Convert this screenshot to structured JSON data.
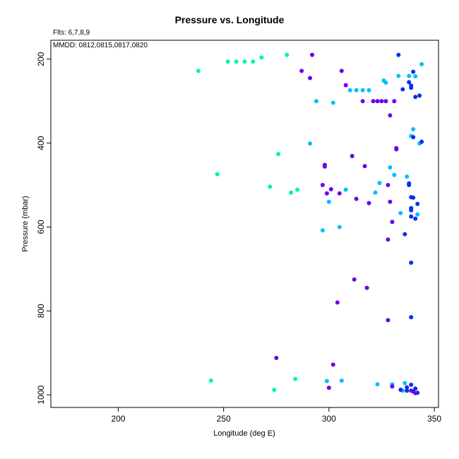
{
  "page": {
    "title": "Pressure vs. Longitude"
  },
  "info": {
    "flts": "Flts: 6,7,8,9",
    "mmdd": "MMDD: 0812,0815,0817,0820"
  },
  "colors": {
    "flt6": "#00f5a6",
    "flt7": "#00bfff",
    "flt8": "#0a2ef0",
    "flt9": "#6b00f0"
  },
  "chart_data": {
    "type": "scatter",
    "title": "Pressure vs. Longitude",
    "xlabel": "Longitude (deg E)",
    "ylabel": "Pressure (mbar)",
    "xlim": [
      168,
      352
    ],
    "ylim": [
      1030,
      155
    ],
    "y_reversed": true,
    "x_ticks": [
      200,
      250,
      300,
      350
    ],
    "y_ticks": [
      200,
      400,
      600,
      800,
      1000
    ],
    "grid": false,
    "series": [
      {
        "color_key": "flt6",
        "points": [
          [
            238,
            228
          ],
          [
            244,
            966
          ],
          [
            247,
            474
          ],
          [
            252,
            206
          ],
          [
            256,
            206
          ],
          [
            260,
            206
          ],
          [
            264,
            206
          ],
          [
            268,
            196
          ],
          [
            272,
            504
          ],
          [
            274,
            988
          ],
          [
            276,
            426
          ],
          [
            280,
            190
          ],
          [
            282,
            518
          ],
          [
            284,
            962
          ],
          [
            285,
            511
          ]
        ]
      },
      {
        "color_key": "flt7",
        "points": [
          [
            291,
            401
          ],
          [
            294,
            300
          ],
          [
            297,
            608
          ],
          [
            299,
            967
          ],
          [
            300,
            540
          ],
          [
            302,
            304
          ],
          [
            305,
            600
          ],
          [
            306,
            966
          ],
          [
            308,
            511
          ],
          [
            310,
            274
          ],
          [
            313,
            274
          ],
          [
            316,
            274
          ],
          [
            319,
            274
          ],
          [
            322,
            518
          ],
          [
            323,
            975
          ],
          [
            324,
            495
          ],
          [
            326,
            251
          ],
          [
            327,
            256
          ],
          [
            329,
            458
          ],
          [
            330,
            975
          ],
          [
            331,
            476
          ],
          [
            333,
            240
          ],
          [
            336,
            972
          ],
          [
            337,
            480
          ],
          [
            338,
            240
          ],
          [
            339,
            383
          ],
          [
            340,
            367
          ],
          [
            341,
            241
          ],
          [
            342,
            570
          ],
          [
            343,
            401
          ],
          [
            344,
            212
          ],
          [
            335,
            990
          ],
          [
            334,
            567
          ]
        ]
      },
      {
        "color_key": "flt8",
        "points": [
          [
            333,
            190
          ],
          [
            335,
            272
          ],
          [
            336,
            617
          ],
          [
            337,
            990
          ],
          [
            338,
            255
          ],
          [
            339,
            263
          ],
          [
            339,
            268
          ],
          [
            338,
            496
          ],
          [
            338,
            500
          ],
          [
            339,
            529
          ],
          [
            339,
            555
          ],
          [
            339,
            560
          ],
          [
            339,
            575
          ],
          [
            339,
            685
          ],
          [
            339,
            815
          ],
          [
            340,
            230
          ],
          [
            340,
            386
          ],
          [
            340,
            530
          ],
          [
            341,
            290
          ],
          [
            341,
            580
          ],
          [
            341,
            985
          ],
          [
            342,
            545
          ],
          [
            343,
            287
          ],
          [
            344,
            397
          ],
          [
            342,
            995
          ],
          [
            337,
            982
          ],
          [
            339,
            976
          ],
          [
            340,
            992
          ],
          [
            334,
            988
          ]
        ]
      },
      {
        "color_key": "flt9",
        "points": [
          [
            275,
            912
          ],
          [
            287,
            228
          ],
          [
            291,
            245
          ],
          [
            292,
            190
          ],
          [
            297,
            500
          ],
          [
            298,
            452
          ],
          [
            298,
            456
          ],
          [
            299,
            520
          ],
          [
            300,
            983
          ],
          [
            301,
            510
          ],
          [
            302,
            928
          ],
          [
            304,
            780
          ],
          [
            305,
            520
          ],
          [
            306,
            228
          ],
          [
            308,
            262
          ],
          [
            311,
            431
          ],
          [
            312,
            725
          ],
          [
            313,
            533
          ],
          [
            316,
            300
          ],
          [
            317,
            455
          ],
          [
            318,
            745
          ],
          [
            319,
            543
          ],
          [
            321,
            300
          ],
          [
            323,
            300
          ],
          [
            325,
            300
          ],
          [
            327,
            300
          ],
          [
            328,
            500
          ],
          [
            328,
            822
          ],
          [
            328,
            630
          ],
          [
            329,
            334
          ],
          [
            329,
            540
          ],
          [
            330,
            588
          ],
          [
            331,
            300
          ],
          [
            332,
            412
          ],
          [
            332,
            415
          ],
          [
            330,
            980
          ],
          [
            339,
            990
          ],
          [
            341,
            996
          ]
        ]
      }
    ]
  }
}
